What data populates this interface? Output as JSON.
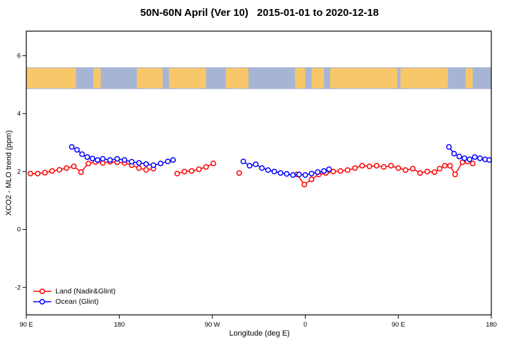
{
  "title": "50N-60N April (Ver 10)   2015-01-01 to 2020-12-18",
  "axes": {
    "xlabel": "Longitude (deg E)",
    "ylabel": "XCO2 - MLO trend (ppm)",
    "x_ticks": [
      {
        "value": 90,
        "label": "90 E"
      },
      {
        "value": 180,
        "label": "180"
      },
      {
        "value": 270,
        "label": "90 W"
      },
      {
        "value": 360,
        "label": "0"
      },
      {
        "value": 450,
        "label": "90 E"
      },
      {
        "value": 540,
        "label": "180"
      }
    ],
    "y_ticks": [
      {
        "value": -2,
        "label": "-2"
      },
      {
        "value": 0,
        "label": "0"
      },
      {
        "value": 2,
        "label": "2"
      },
      {
        "value": 4,
        "label": "4"
      },
      {
        "value": 6,
        "label": "6"
      }
    ]
  },
  "legend": {
    "items": [
      {
        "label": "Land (Nadir&Glint)",
        "color": "#ff0000"
      },
      {
        "label": "Ocean (Glint)",
        "color": "#0000ff"
      }
    ]
  },
  "map_band": {
    "ocean_color": "#a7b5d5",
    "land_color": "#f8c76a",
    "value_range": [
      4.85,
      5.6
    ],
    "land_segments_lon": [
      [
        90,
        138
      ],
      [
        155,
        162
      ],
      [
        197,
        222
      ],
      [
        228,
        264
      ],
      [
        283,
        305
      ],
      [
        350,
        360
      ],
      [
        366,
        378
      ],
      [
        384,
        449
      ],
      [
        452,
        498
      ],
      [
        515,
        522
      ]
    ]
  },
  "chart_data": {
    "type": "line",
    "title": "50N-60N April (Ver 10)   2015-01-01 to 2020-12-18",
    "xlabel": "Longitude (deg E)",
    "ylabel": "XCO2 - MLO trend (ppm)",
    "xlim": [
      90,
      540
    ],
    "ylim": [
      -2.95,
      6.85
    ],
    "grid": false,
    "legend_position": "bottom-left",
    "series": [
      {
        "name": "Land (Nadir&Glint)",
        "color": "#ff0000",
        "marker": "open-circle",
        "segments": [
          [
            [
              94,
              1.93
            ],
            [
              101,
              1.93
            ],
            [
              108,
              1.96
            ],
            [
              115,
              2.02
            ],
            [
              122,
              2.06
            ],
            [
              129,
              2.12
            ],
            [
              136,
              2.18
            ],
            [
              143,
              1.98
            ],
            [
              150,
              2.28
            ],
            [
              157,
              2.33
            ],
            [
              164,
              2.3
            ],
            [
              171,
              2.34
            ],
            [
              178,
              2.32
            ],
            [
              185,
              2.3
            ],
            [
              192,
              2.22
            ],
            [
              199,
              2.12
            ],
            [
              206,
              2.06
            ],
            [
              213,
              2.1
            ]
          ],
          [
            [
              236,
              1.93
            ],
            [
              243,
              2.0
            ],
            [
              250,
              2.02
            ],
            [
              257,
              2.08
            ],
            [
              264,
              2.16
            ],
            [
              271,
              2.28
            ]
          ],
          [
            [
              296,
              1.95
            ]
          ],
          [
            [
              352,
              1.9
            ],
            [
              359,
              1.55
            ],
            [
              366,
              1.73
            ],
            [
              373,
              1.9
            ],
            [
              380,
              1.95
            ],
            [
              387,
              2.0
            ],
            [
              394,
              2.02
            ],
            [
              401,
              2.05
            ],
            [
              408,
              2.12
            ],
            [
              415,
              2.2
            ],
            [
              422,
              2.18
            ],
            [
              429,
              2.2
            ],
            [
              436,
              2.16
            ],
            [
              443,
              2.2
            ],
            [
              450,
              2.12
            ],
            [
              457,
              2.05
            ],
            [
              464,
              2.1
            ],
            [
              471,
              1.95
            ],
            [
              478,
              2.0
            ],
            [
              485,
              1.98
            ],
            [
              490,
              2.1
            ],
            [
              495,
              2.2
            ],
            [
              500,
              2.2
            ],
            [
              505,
              1.9
            ],
            [
              512,
              2.32
            ],
            [
              517,
              2.35
            ],
            [
              522,
              2.28
            ]
          ]
        ]
      },
      {
        "name": "Ocean (Glint)",
        "color": "#0000ff",
        "marker": "open-circle",
        "segments": [
          [
            [
              134,
              2.85
            ],
            [
              139,
              2.75
            ],
            [
              144,
              2.6
            ],
            [
              149,
              2.5
            ],
            [
              154,
              2.45
            ],
            [
              159,
              2.4
            ],
            [
              164,
              2.44
            ],
            [
              171,
              2.4
            ],
            [
              178,
              2.44
            ],
            [
              185,
              2.4
            ],
            [
              192,
              2.34
            ],
            [
              199,
              2.3
            ],
            [
              206,
              2.26
            ],
            [
              213,
              2.22
            ],
            [
              220,
              2.28
            ],
            [
              227,
              2.35
            ],
            [
              232,
              2.4
            ]
          ],
          [
            [
              300,
              2.35
            ],
            [
              306,
              2.2
            ],
            [
              312,
              2.25
            ],
            [
              318,
              2.12
            ],
            [
              324,
              2.05
            ],
            [
              330,
              2.0
            ],
            [
              336,
              1.95
            ],
            [
              342,
              1.92
            ],
            [
              348,
              1.88
            ],
            [
              354,
              1.9
            ],
            [
              360,
              1.88
            ],
            [
              366,
              1.93
            ],
            [
              372,
              1.98
            ],
            [
              378,
              2.02
            ],
            [
              383,
              2.08
            ]
          ],
          [
            [
              499,
              2.85
            ],
            [
              504,
              2.62
            ],
            [
              509,
              2.52
            ],
            [
              514,
              2.46
            ],
            [
              519,
              2.42
            ],
            [
              524,
              2.5
            ],
            [
              529,
              2.46
            ],
            [
              534,
              2.42
            ],
            [
              538,
              2.4
            ]
          ]
        ]
      }
    ]
  }
}
